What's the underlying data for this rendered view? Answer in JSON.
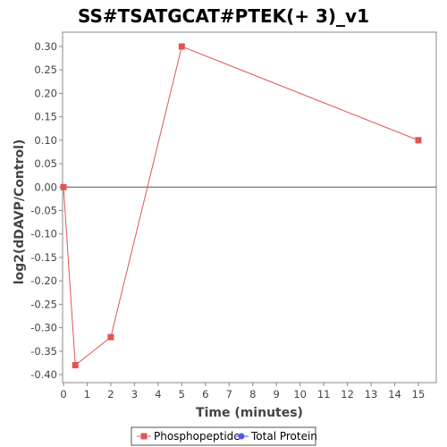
{
  "chart_data": {
    "type": "line",
    "title": "SS#TSATGCAT#PTEK(+ 3)_v1",
    "xlabel": "Time (minutes)",
    "ylabel": "log2(dDAVP/Control)",
    "xlim": [
      0,
      15.75
    ],
    "ylim": [
      -0.415,
      0.33
    ],
    "x_ticks": [
      0,
      1,
      2,
      3,
      4,
      5,
      6,
      7,
      8,
      9,
      10,
      11,
      12,
      13,
      14,
      15
    ],
    "y_ticks": [
      -0.4,
      -0.35,
      -0.3,
      -0.25,
      -0.2,
      -0.15,
      -0.1,
      -0.05,
      0.0,
      0.05,
      0.1,
      0.15,
      0.2,
      0.25,
      0.3
    ],
    "y_tick_labels": [
      "-0.40",
      "-0.35",
      "-0.30",
      "-0.25",
      "-0.20",
      "-0.15",
      "-0.10",
      "-0.05",
      "0.00",
      "0.05",
      "0.10",
      "0.15",
      "0.20",
      "0.25",
      "0.30"
    ],
    "zero_line": true,
    "grid": false,
    "legend_position": "bottom",
    "series": [
      {
        "name": "Phosphopeptide",
        "color": "#e05555",
        "marker": "square",
        "x": [
          0,
          0.5,
          2,
          5,
          15
        ],
        "y": [
          0.0,
          -0.38,
          -0.32,
          0.3,
          0.1
        ]
      },
      {
        "name": "Total Protein",
        "color": "#5555ee",
        "marker": "circle",
        "x": [],
        "y": []
      }
    ]
  }
}
